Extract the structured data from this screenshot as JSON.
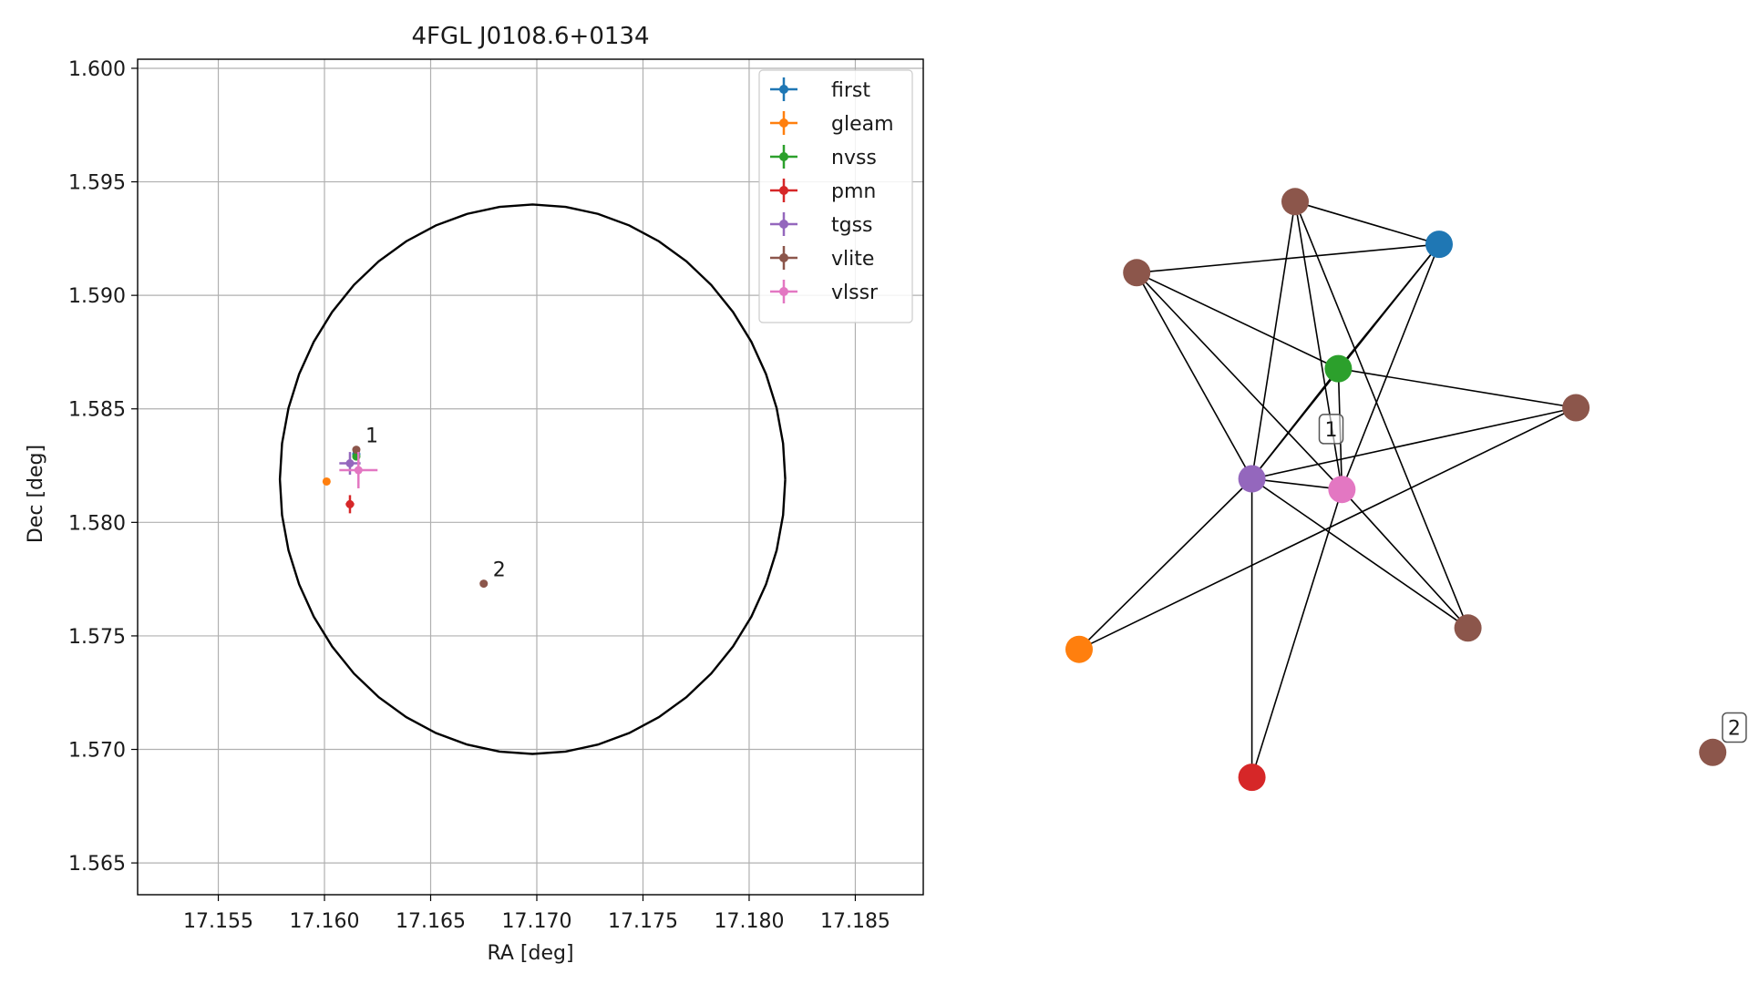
{
  "chart_data": [
    {
      "type": "scatter",
      "title": "4FGL J0108.6+0134",
      "xlabel": "RA [deg]",
      "ylabel": "Dec [deg]",
      "xlim": [
        17.1512,
        17.1882
      ],
      "ylim": [
        1.5636,
        1.6004
      ],
      "xticks": [
        "17.155",
        "17.160",
        "17.165",
        "17.170",
        "17.175",
        "17.180",
        "17.185"
      ],
      "yticks": [
        "1.565",
        "1.570",
        "1.575",
        "1.580",
        "1.585",
        "1.590",
        "1.595",
        "1.600"
      ],
      "grid": true,
      "legend_position": "top-right",
      "ellipse": {
        "center": [
          17.1698,
          1.5819
        ],
        "semi_axis_ra": 0.0119,
        "semi_axis_dec": 0.0121,
        "color": "#000000"
      },
      "series": [
        {
          "name": "first",
          "color": "#1f77b4",
          "points": [
            {
              "x": 17.1615,
              "y": 1.583,
              "xerr": 0.0001,
              "yerr": 0.0001
            }
          ]
        },
        {
          "name": "gleam",
          "color": "#ff7f0e",
          "points": [
            {
              "x": 17.1601,
              "y": 1.5818,
              "xerr": 0.0,
              "yerr": 0.0
            }
          ]
        },
        {
          "name": "nvss",
          "color": "#2ca02c",
          "points": [
            {
              "x": 17.1615,
              "y": 1.5829,
              "xerr": 0.0001,
              "yerr": 0.0001
            }
          ]
        },
        {
          "name": "pmn",
          "color": "#d62728",
          "points": [
            {
              "x": 17.1612,
              "y": 1.5808,
              "xerr": 0.0002,
              "yerr": 0.0004
            }
          ]
        },
        {
          "name": "tgss",
          "color": "#9467bd",
          "points": [
            {
              "x": 17.1612,
              "y": 1.5826,
              "xerr": 0.0005,
              "yerr": 0.0005
            }
          ]
        },
        {
          "name": "vlite",
          "color": "#8c564b",
          "points": [
            {
              "x": 17.1615,
              "y": 1.5832,
              "xerr": 0.0,
              "yerr": 0.0,
              "label": "1"
            },
            {
              "x": 17.1675,
              "y": 1.5773,
              "xerr": 0.0,
              "yerr": 0.0,
              "label": "2"
            }
          ]
        },
        {
          "name": "vlssr",
          "color": "#e377c2",
          "points": [
            {
              "x": 17.1616,
              "y": 1.5823,
              "xerr": 0.0009,
              "yerr": 0.0008
            }
          ]
        }
      ]
    },
    {
      "type": "network",
      "nodes": [
        {
          "id": "first",
          "color": "#1f77b4",
          "x": 0.6,
          "y": 0.145
        },
        {
          "id": "vlite_a",
          "color": "#8c564b",
          "x": 0.4,
          "y": 0.085
        },
        {
          "id": "vlite_b",
          "color": "#8c564b",
          "x": 0.18,
          "y": 0.185
        },
        {
          "id": "nvss",
          "color": "#2ca02c",
          "x": 0.46,
          "y": 0.32
        },
        {
          "id": "vlite_c",
          "color": "#8c564b",
          "x": 0.79,
          "y": 0.375
        },
        {
          "id": "tgss",
          "color": "#9467bd",
          "x": 0.34,
          "y": 0.475
        },
        {
          "id": "vlssr",
          "color": "#e377c2",
          "x": 0.465,
          "y": 0.49
        },
        {
          "id": "vlite_d",
          "color": "#8c564b",
          "x": 0.64,
          "y": 0.685
        },
        {
          "id": "gleam",
          "color": "#ff7f0e",
          "x": 0.1,
          "y": 0.715
        },
        {
          "id": "pmn",
          "color": "#d62728",
          "x": 0.34,
          "y": 0.895
        },
        {
          "id": "vlite_e",
          "color": "#8c564b",
          "x": 0.98,
          "y": 0.86
        }
      ],
      "edges": [
        [
          "vlite_a",
          "first"
        ],
        [
          "vlite_a",
          "tgss"
        ],
        [
          "vlite_a",
          "vlssr"
        ],
        [
          "vlite_a",
          "vlite_d"
        ],
        [
          "vlite_b",
          "first"
        ],
        [
          "vlite_b",
          "tgss"
        ],
        [
          "vlite_b",
          "vlssr"
        ],
        [
          "vlite_b",
          "nvss"
        ],
        [
          "first",
          "tgss"
        ],
        [
          "first",
          "vlssr"
        ],
        [
          "first",
          "nvss"
        ],
        [
          "nvss",
          "vlite_c"
        ],
        [
          "nvss",
          "tgss"
        ],
        [
          "nvss",
          "vlssr"
        ],
        [
          "vlite_c",
          "tgss"
        ],
        [
          "vlite_c",
          "gleam"
        ],
        [
          "tgss",
          "vlssr"
        ],
        [
          "tgss",
          "vlite_d"
        ],
        [
          "tgss",
          "gleam"
        ],
        [
          "tgss",
          "pmn"
        ],
        [
          "vlssr",
          "vlite_d"
        ],
        [
          "vlssr",
          "pmn"
        ]
      ],
      "labels": [
        {
          "text": "1",
          "node": "nvss",
          "dx": -0.01,
          "dy": 0.085
        },
        {
          "text": "2",
          "node": "vlite_e",
          "dx": 0.03,
          "dy": -0.035
        }
      ]
    }
  ]
}
